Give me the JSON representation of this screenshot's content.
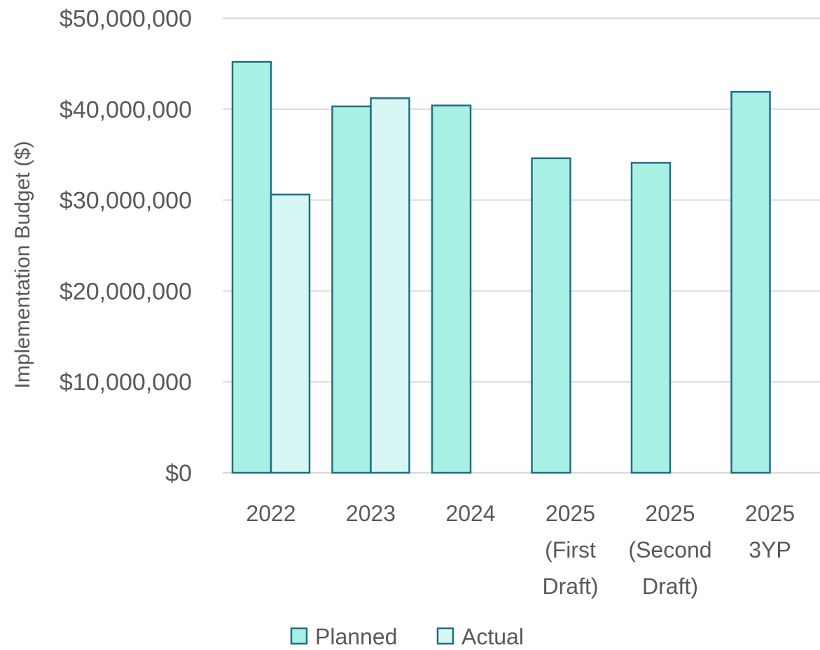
{
  "chart_data": {
    "type": "bar",
    "title": "",
    "xlabel": "",
    "ylabel": "Implementation Budget ($)",
    "categories": [
      [
        "2022"
      ],
      [
        "2023"
      ],
      [
        "2024"
      ],
      [
        "2025",
        "(First",
        "Draft)"
      ],
      [
        "2025",
        "(Second",
        "Draft)"
      ],
      [
        "2025",
        "3YP"
      ]
    ],
    "series": [
      {
        "name": "Planned",
        "color": "#a8f0e4",
        "values": [
          45200000,
          40300000,
          40400000,
          34600000,
          34100000,
          41900000
        ]
      },
      {
        "name": "Actual",
        "color": "#d6f7f4",
        "values": [
          30600000,
          41200000,
          null,
          null,
          null,
          null
        ]
      }
    ],
    "ylim": [
      0,
      50000000
    ],
    "yticks": [
      "$0",
      "$10,000,000",
      "$20,000,000",
      "$30,000,000",
      "$40,000,000",
      "$50,000,000"
    ],
    "ytick_values": [
      0,
      10000000,
      20000000,
      30000000,
      40000000,
      50000000
    ],
    "grid": true,
    "legend_position": "bottom",
    "bar_outline_color": "#1f6e86",
    "grid_color": "#d9d9d9"
  }
}
